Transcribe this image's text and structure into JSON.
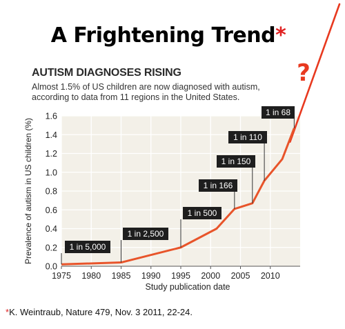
{
  "slide": {
    "title": "A Frightening Trend",
    "title_mark": "*",
    "source_mark": "*",
    "source": "K. Weintraub, Nature 479, Nov. 3 2011, 22-24.",
    "question_mark": "?"
  },
  "chart_data": {
    "type": "line",
    "title": "AUTISM DIAGNOSES RISING",
    "subtitle": "Almost 1.5% of US children are now diagnosed with autism, according to data from 11 regions in the United States.",
    "xlabel": "Study publication date",
    "ylabel": "Prevalence of autism in US children (%)",
    "xlim": [
      1975,
      2015
    ],
    "ylim": [
      0,
      1.6
    ],
    "xticks": [
      1975,
      1980,
      1985,
      1990,
      1995,
      2000,
      2005,
      2010
    ],
    "yticks": [
      0,
      0.2,
      0.4,
      0.6,
      0.8,
      1.0,
      1.2,
      1.4,
      1.6
    ],
    "grid": true,
    "series": [
      {
        "x": [
          1975,
          1985,
          1995,
          2001,
          2004,
          2007,
          2009,
          2012,
          2014
        ],
        "y": [
          0.02,
          0.04,
          0.2,
          0.4,
          0.61,
          0.67,
          0.91,
          1.14,
          1.47
        ],
        "color": "#e8542a"
      }
    ],
    "annotations": [
      {
        "label": "1 in 5,000",
        "x": 1975,
        "y": 0.02
      },
      {
        "label": "1 in 2,500",
        "x": 1985,
        "y": 0.04
      },
      {
        "label": "1 in 500",
        "x": 1995,
        "y": 0.2
      },
      {
        "label": "1 in 166",
        "x": 2004,
        "y": 0.61
      },
      {
        "label": "1 in 150",
        "x": 2007,
        "y": 0.67
      },
      {
        "label": "1 in 110",
        "x": 2009,
        "y": 0.91
      },
      {
        "label": "1 in 68",
        "x": 2014,
        "y": 1.47
      }
    ],
    "trend_line_color": "#e8391f",
    "question_color": "#e8391f"
  }
}
